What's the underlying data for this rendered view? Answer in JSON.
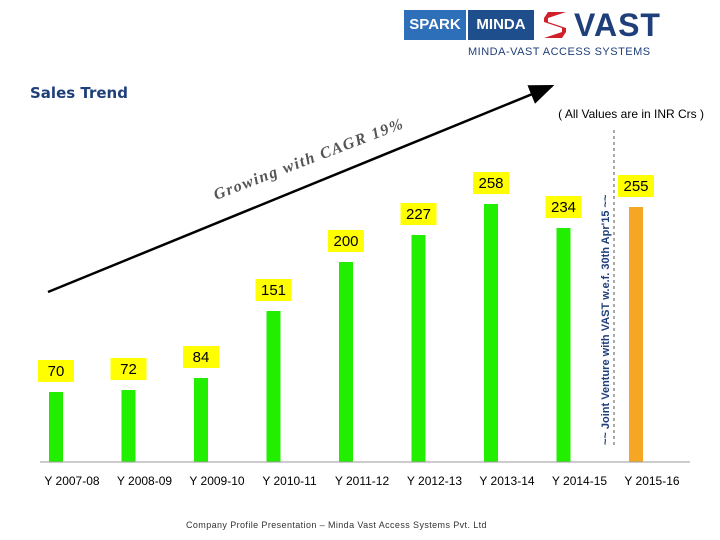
{
  "header": {
    "logo_spark": "SPARK",
    "logo_minda": "MINDA",
    "logo_vast": "VAST",
    "logo_tagline": "MINDA-VAST ACCESS SYSTEMS",
    "section_title": "Sales Trend",
    "unit_note": "( All Values are in INR Crs )"
  },
  "footer": {
    "text": "Company Profile Presentation – Minda Vast Access Systems Pvt. Ltd"
  },
  "colors": {
    "bar": "#22ee00",
    "highlight_bar": "#f5a623",
    "label_bg": "#ffff00",
    "trend_arrow": "#000000",
    "brand_blue": "#1f3f7a",
    "brand_red": "#d0202a"
  },
  "chart_data": {
    "type": "bar",
    "categories": [
      "Y 2007-08",
      "Y 2008-09",
      "Y 2009-10",
      "Y 2010-11",
      "Y 2011-12",
      "Y 2012-13",
      "Y 2013-14",
      "Y 2014-15",
      "Y 2015-16"
    ],
    "values": [
      70,
      72,
      84,
      151,
      200,
      227,
      258,
      234,
      255
    ],
    "highlight_index": 8,
    "ylim": [
      0,
      290
    ],
    "grid": false,
    "annotations": {
      "trend_text": "Growing with CAGR 19%",
      "divider_text": "~~ Joint Venture with VAST w.e.f. 30th Apr'15 ~~"
    }
  }
}
